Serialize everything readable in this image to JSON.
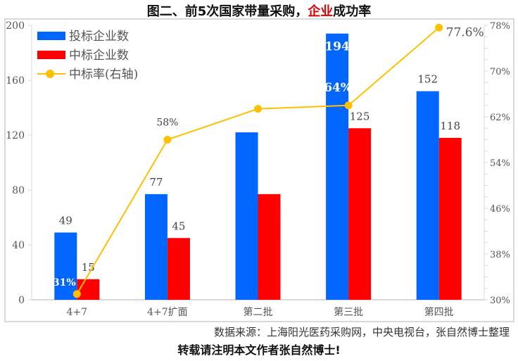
{
  "title": {
    "main": "图二、前5次国家带量采购，",
    "highlight": "企业",
    "tail": "成功率"
  },
  "watermark": "张自然",
  "source": "数据来源：上海阳光医药采购网，中央电视台，张自然博士整理",
  "note": "转载请注明本文作者张自然博士!",
  "colors": {
    "bid": "#0066ff",
    "win": "#ff0000",
    "rate": "#ffc000"
  },
  "chart_data": {
    "type": "bar",
    "categories": [
      "4+7",
      "4+7扩面",
      "第二批",
      "第三批",
      "第四批"
    ],
    "series": [
      {
        "name": "投标企业数",
        "values": [
          49,
          77,
          122,
          194,
          152
        ],
        "axis": "left",
        "labels": [
          "49",
          "77",
          "",
          "194",
          "152"
        ]
      },
      {
        "name": "中标企业数",
        "values": [
          15,
          45,
          77,
          125,
          118
        ],
        "axis": "left",
        "labels": [
          "15",
          "45",
          "",
          "125",
          "118"
        ]
      },
      {
        "name": "中标率(右轴)",
        "type": "line",
        "values": [
          31,
          58,
          63.4,
          64,
          77.6
        ],
        "axis": "right",
        "labels": [
          "31%",
          "58%",
          "",
          "64%",
          "77.6%"
        ]
      }
    ],
    "ylim": [
      0,
      200
    ],
    "yticks": [
      0,
      40,
      80,
      120,
      160,
      200
    ],
    "y2lim": [
      30,
      78
    ],
    "y2ticks": [
      "30%",
      "38%",
      "46%",
      "54%",
      "62%",
      "70%",
      "78%"
    ],
    "legend": "top-left"
  }
}
